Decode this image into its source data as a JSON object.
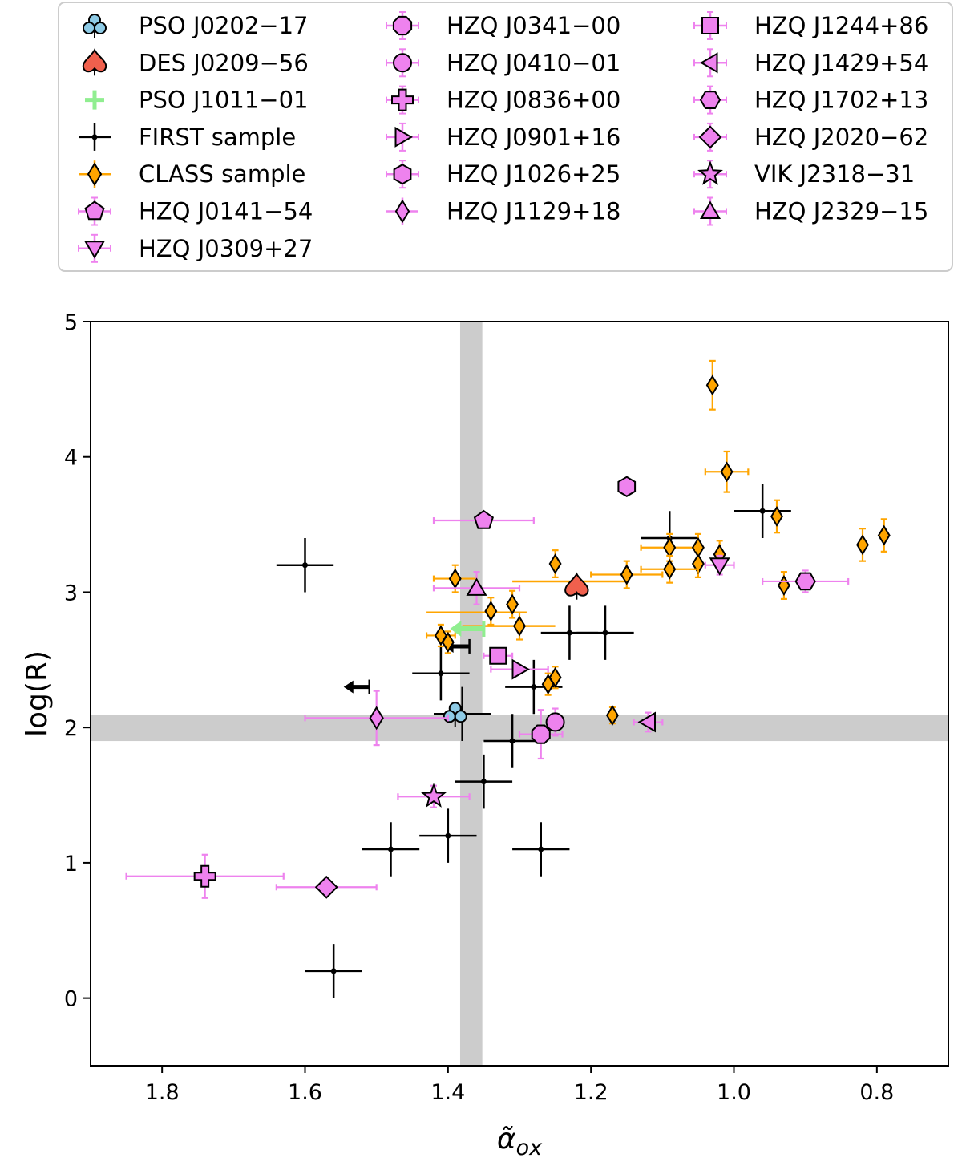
{
  "chart_data": {
    "type": "scatter",
    "title": "",
    "xlabel": "α̃",
    "xlabel_sub": "ox",
    "ylabel": "log(R)",
    "xlim": [
      1.9,
      0.7
    ],
    "ylim": [
      -0.5,
      5.0
    ],
    "x_inverted": true,
    "x_ticks": [
      1.8,
      1.6,
      1.4,
      1.2,
      1.0,
      0.8
    ],
    "x_tick_labels": [
      "1.8",
      "1.6",
      "1.4",
      "1.2",
      "1.0",
      "0.8"
    ],
    "y_ticks": [
      0,
      1,
      2,
      3,
      4,
      5
    ],
    "y_tick_labels": [
      "0",
      "1",
      "2",
      "3",
      "4",
      "5"
    ],
    "grid": false,
    "legend_position": "top (above plot), 3 columns",
    "shaded_bands": [
      {
        "orientation": "vertical",
        "from": 1.383,
        "to": 1.352,
        "color": "#cccccc"
      },
      {
        "orientation": "horizontal",
        "from": 1.9,
        "to": 2.09,
        "color": "#cccccc"
      }
    ],
    "colors": {
      "pso_j0202": "#8ecbe6",
      "des_j0209": "#f0604d",
      "pso_j1011": "#90ee90",
      "first": "#000000",
      "class_face": "#ffa500",
      "class_err": "#ffa500",
      "hzq_face": "#ee82ee",
      "hzq_err": "#ee82ee"
    },
    "legend": [
      {
        "label": "PSO J0202−17",
        "marker": "club",
        "face": "#8ecbe6",
        "err": null
      },
      {
        "label": "DES J0209−56",
        "marker": "spade",
        "face": "#f0604d",
        "err": null
      },
      {
        "label": "PSO J1011−01",
        "marker": "plus-thick",
        "face": "#90ee90",
        "err": null
      },
      {
        "label": "FIRST sample",
        "marker": "dot",
        "face": "#000000",
        "err": "#000000"
      },
      {
        "label": "CLASS sample",
        "marker": "thin-diamond",
        "face": "#ffa500",
        "err": "#ffa500"
      },
      {
        "label": "HZQ J0141−54",
        "marker": "pentagon",
        "face": "#ee82ee",
        "err": "#ee82ee"
      },
      {
        "label": "HZQ J0309+27",
        "marker": "triangle-down",
        "face": "#ee82ee",
        "err": "#ee82ee"
      },
      {
        "label": "HZQ J0341−00",
        "marker": "octagon",
        "face": "#ee82ee",
        "err": "#ee82ee"
      },
      {
        "label": "HZQ J0410−01",
        "marker": "circle",
        "face": "#ee82ee",
        "err": "#ee82ee"
      },
      {
        "label": "HZQ J0836+00",
        "marker": "plus-filled",
        "face": "#ee82ee",
        "err": "#ee82ee"
      },
      {
        "label": "HZQ J0901+16",
        "marker": "triangle-right",
        "face": "#ee82ee",
        "err": "#ee82ee"
      },
      {
        "label": "HZQ J1026+25",
        "marker": "hexagon",
        "face": "#ee82ee",
        "err": "#ee82ee"
      },
      {
        "label": "HZQ J1129+18",
        "marker": "thin-diamond",
        "face": "#ee82ee",
        "err": "#ee82ee"
      },
      {
        "label": "HZQ J1244+86",
        "marker": "square",
        "face": "#ee82ee",
        "err": "#ee82ee"
      },
      {
        "label": "HZQ J1429+54",
        "marker": "triangle-left",
        "face": "#ee82ee",
        "err": "#ee82ee"
      },
      {
        "label": "HZQ J1702+13",
        "marker": "hexagon2",
        "face": "#ee82ee",
        "err": "#ee82ee"
      },
      {
        "label": "HZQ J2020−62",
        "marker": "diamond",
        "face": "#ee82ee",
        "err": "#ee82ee"
      },
      {
        "label": "VIK J2318−31",
        "marker": "star",
        "face": "#ee82ee",
        "err": "#ee82ee"
      },
      {
        "label": "HZQ J2329−15",
        "marker": "triangle-up",
        "face": "#ee82ee",
        "err": "#ee82ee"
      }
    ],
    "series": [
      {
        "name": "FIRST sample",
        "marker": "dot",
        "points": [
          {
            "x": 1.6,
            "y": 3.2,
            "xerr": 0.04,
            "yerr": 0.2
          },
          {
            "x": 1.56,
            "y": 0.2,
            "xerr": 0.04,
            "yerr": 0.2
          },
          {
            "x": 1.48,
            "y": 1.1,
            "xerr": 0.04,
            "yerr": 0.2
          },
          {
            "x": 1.4,
            "y": 1.2,
            "xerr": 0.04,
            "yerr": 0.2
          },
          {
            "x": 1.41,
            "y": 2.4,
            "xerr": 0.04,
            "yerr": 0.2
          },
          {
            "x": 1.38,
            "y": 2.1,
            "xerr": 0.04,
            "yerr": 0.2
          },
          {
            "x": 1.35,
            "y": 1.6,
            "xerr": 0.04,
            "yerr": 0.2
          },
          {
            "x": 1.31,
            "y": 1.9,
            "xerr": 0.04,
            "yerr": 0.2
          },
          {
            "x": 1.27,
            "y": 1.1,
            "xerr": 0.04,
            "yerr": 0.2
          },
          {
            "x": 1.28,
            "y": 2.3,
            "xerr": 0.04,
            "yerr": 0.2
          },
          {
            "x": 1.23,
            "y": 2.7,
            "xerr": 0.04,
            "yerr": 0.2
          },
          {
            "x": 1.18,
            "y": 2.7,
            "xerr": 0.04,
            "yerr": 0.2
          },
          {
            "x": 1.09,
            "y": 3.4,
            "xerr": 0.04,
            "yerr": 0.2
          },
          {
            "x": 0.96,
            "y": 3.6,
            "xerr": 0.04,
            "yerr": 0.2
          }
        ],
        "upper_limits": [
          {
            "x": 1.51,
            "y": 2.3
          },
          {
            "x": 1.37,
            "y": 2.6
          }
        ]
      },
      {
        "name": "CLASS sample",
        "marker": "thin-diamond",
        "points": [
          {
            "x": 1.03,
            "y": 4.53,
            "xerr": 0.0,
            "yerr": 0.18
          },
          {
            "x": 1.01,
            "y": 3.89,
            "xerr": 0.03,
            "yerr": 0.15
          },
          {
            "x": 0.94,
            "y": 3.56,
            "xerr": 0.0,
            "yerr": 0.12
          },
          {
            "x": 0.82,
            "y": 3.35,
            "xerr": 0.0,
            "yerr": 0.12
          },
          {
            "x": 0.79,
            "y": 3.42,
            "xerr": 0.0,
            "yerr": 0.12
          },
          {
            "x": 0.93,
            "y": 3.05,
            "xerr": 0.0,
            "yerr": 0.1
          },
          {
            "x": 1.09,
            "y": 3.33,
            "xerr": 0.04,
            "yerr": 0.1
          },
          {
            "x": 1.05,
            "y": 3.33,
            "xerr": 0.0,
            "yerr": 0.1
          },
          {
            "x": 1.02,
            "y": 3.28,
            "xerr": 0.0,
            "yerr": 0.1
          },
          {
            "x": 1.05,
            "y": 3.21,
            "xerr": 0.0,
            "yerr": 0.1
          },
          {
            "x": 1.09,
            "y": 3.17,
            "xerr": 0.04,
            "yerr": 0.1
          },
          {
            "x": 1.15,
            "y": 3.13,
            "xerr": 0.05,
            "yerr": 0.1
          },
          {
            "x": 1.25,
            "y": 3.21,
            "xerr": 0.0,
            "yerr": 0.1
          },
          {
            "x": 1.39,
            "y": 3.1,
            "xerr": 0.03,
            "yerr": 0.1
          },
          {
            "x": 1.31,
            "y": 2.91,
            "xerr": 0.0,
            "yerr": 0.1
          },
          {
            "x": 1.34,
            "y": 2.86,
            "xerr": 0.0,
            "yerr": 0.1
          },
          {
            "x": 1.3,
            "y": 2.75,
            "xerr": 0.0,
            "yerr": 0.1
          },
          {
            "x": 1.41,
            "y": 2.68,
            "xerr": 0.02,
            "yerr": 0.08
          },
          {
            "x": 1.4,
            "y": 2.63,
            "xerr": 0.0,
            "yerr": 0.08
          },
          {
            "x": 1.26,
            "y": 2.32,
            "xerr": 0.0,
            "yerr": 0.08
          },
          {
            "x": 1.25,
            "y": 2.37,
            "xerr": 0.0,
            "yerr": 0.08
          },
          {
            "x": 1.17,
            "y": 2.09,
            "xerr": 0.0,
            "yerr": 0.06
          }
        ],
        "wide_error_points": [
          {
            "x": 1.25,
            "y": 3.08,
            "xerr_lo": 0.1,
            "xerr_hi": 0.06
          },
          {
            "x": 1.36,
            "y": 2.85,
            "xerr_lo": 0.07,
            "xerr_hi": 0.07
          },
          {
            "x": 1.33,
            "y": 2.75,
            "xerr_lo": 0.08,
            "xerr_hi": 0.05
          }
        ]
      },
      {
        "name": "PSO J0202−17",
        "marker": "club",
        "points": [
          {
            "x": 1.39,
            "y": 2.1,
            "xerr": 0.0,
            "yerr": 0.0
          }
        ]
      },
      {
        "name": "DES J0209−56",
        "marker": "spade",
        "points": [
          {
            "x": 1.22,
            "y": 3.04,
            "xerr": 0.02,
            "yerr": 0.08
          }
        ]
      },
      {
        "name": "PSO J1011−01",
        "marker": "plus-thick",
        "points": [
          {
            "x": 1.35,
            "y": 2.73,
            "xerr": 0.0,
            "yerr": 0.0
          }
        ],
        "upper_limit_x": true
      },
      {
        "name": "HZQ J0141−54",
        "marker": "pentagon",
        "points": [
          {
            "x": 1.35,
            "y": 3.53,
            "xerr": 0.07,
            "yerr": 0.0
          }
        ]
      },
      {
        "name": "HZQ J0309+27",
        "marker": "triangle-down",
        "points": [
          {
            "x": 1.02,
            "y": 3.2,
            "xerr": 0.02,
            "yerr": 0.07
          }
        ]
      },
      {
        "name": "HZQ J0341−00",
        "marker": "octagon",
        "points": [
          {
            "x": 1.27,
            "y": 1.95,
            "xerr": 0.03,
            "yerr": 0.18
          }
        ]
      },
      {
        "name": "HZQ J0410−01",
        "marker": "circle",
        "points": [
          {
            "x": 1.25,
            "y": 2.04,
            "xerr": 0.0,
            "yerr": 0.1
          }
        ]
      },
      {
        "name": "HZQ J0836+00",
        "marker": "plus-filled",
        "points": [
          {
            "x": 1.74,
            "y": 0.9,
            "xerr_lo": 0.11,
            "xerr_hi": 0.11,
            "yerr": 0.16
          }
        ]
      },
      {
        "name": "HZQ J0901+16",
        "marker": "triangle-right",
        "points": [
          {
            "x": 1.3,
            "y": 2.43,
            "xerr": 0.04,
            "yerr": 0.0
          }
        ]
      },
      {
        "name": "HZQ J1026+25",
        "marker": "hexagon",
        "points": [
          {
            "x": 1.15,
            "y": 3.78,
            "xerr": 0.0,
            "yerr": 0.0
          }
        ]
      },
      {
        "name": "HZQ J1129+18",
        "marker": "thin-diamond",
        "points": [
          {
            "x": 1.5,
            "y": 2.07,
            "xerr_lo": 0.1,
            "xerr_hi": 0.1,
            "yerr": 0.2
          }
        ]
      },
      {
        "name": "HZQ J1244+86",
        "marker": "square",
        "points": [
          {
            "x": 1.33,
            "y": 2.53,
            "xerr": 0.02,
            "yerr": 0.05
          }
        ]
      },
      {
        "name": "HZQ J1429+54",
        "marker": "triangle-left",
        "points": [
          {
            "x": 1.12,
            "y": 2.04,
            "xerr": 0.02,
            "yerr": 0.07
          }
        ]
      },
      {
        "name": "HZQ J1702+13",
        "marker": "hexagon2",
        "points": [
          {
            "x": 0.9,
            "y": 3.08,
            "xerr": 0.06,
            "yerr": 0.08
          }
        ]
      },
      {
        "name": "HZQ J2020−62",
        "marker": "diamond",
        "points": [
          {
            "x": 1.57,
            "y": 0.82,
            "xerr": 0.07,
            "yerr": 0.0
          }
        ]
      },
      {
        "name": "VIK J2318−31",
        "marker": "star",
        "points": [
          {
            "x": 1.42,
            "y": 1.49,
            "xerr": 0.05,
            "yerr": 0.08
          }
        ]
      },
      {
        "name": "HZQ J2329−15",
        "marker": "triangle-up",
        "points": [
          {
            "x": 1.36,
            "y": 3.03,
            "xerr": 0.06,
            "yerr": 0.12
          }
        ]
      }
    ]
  }
}
